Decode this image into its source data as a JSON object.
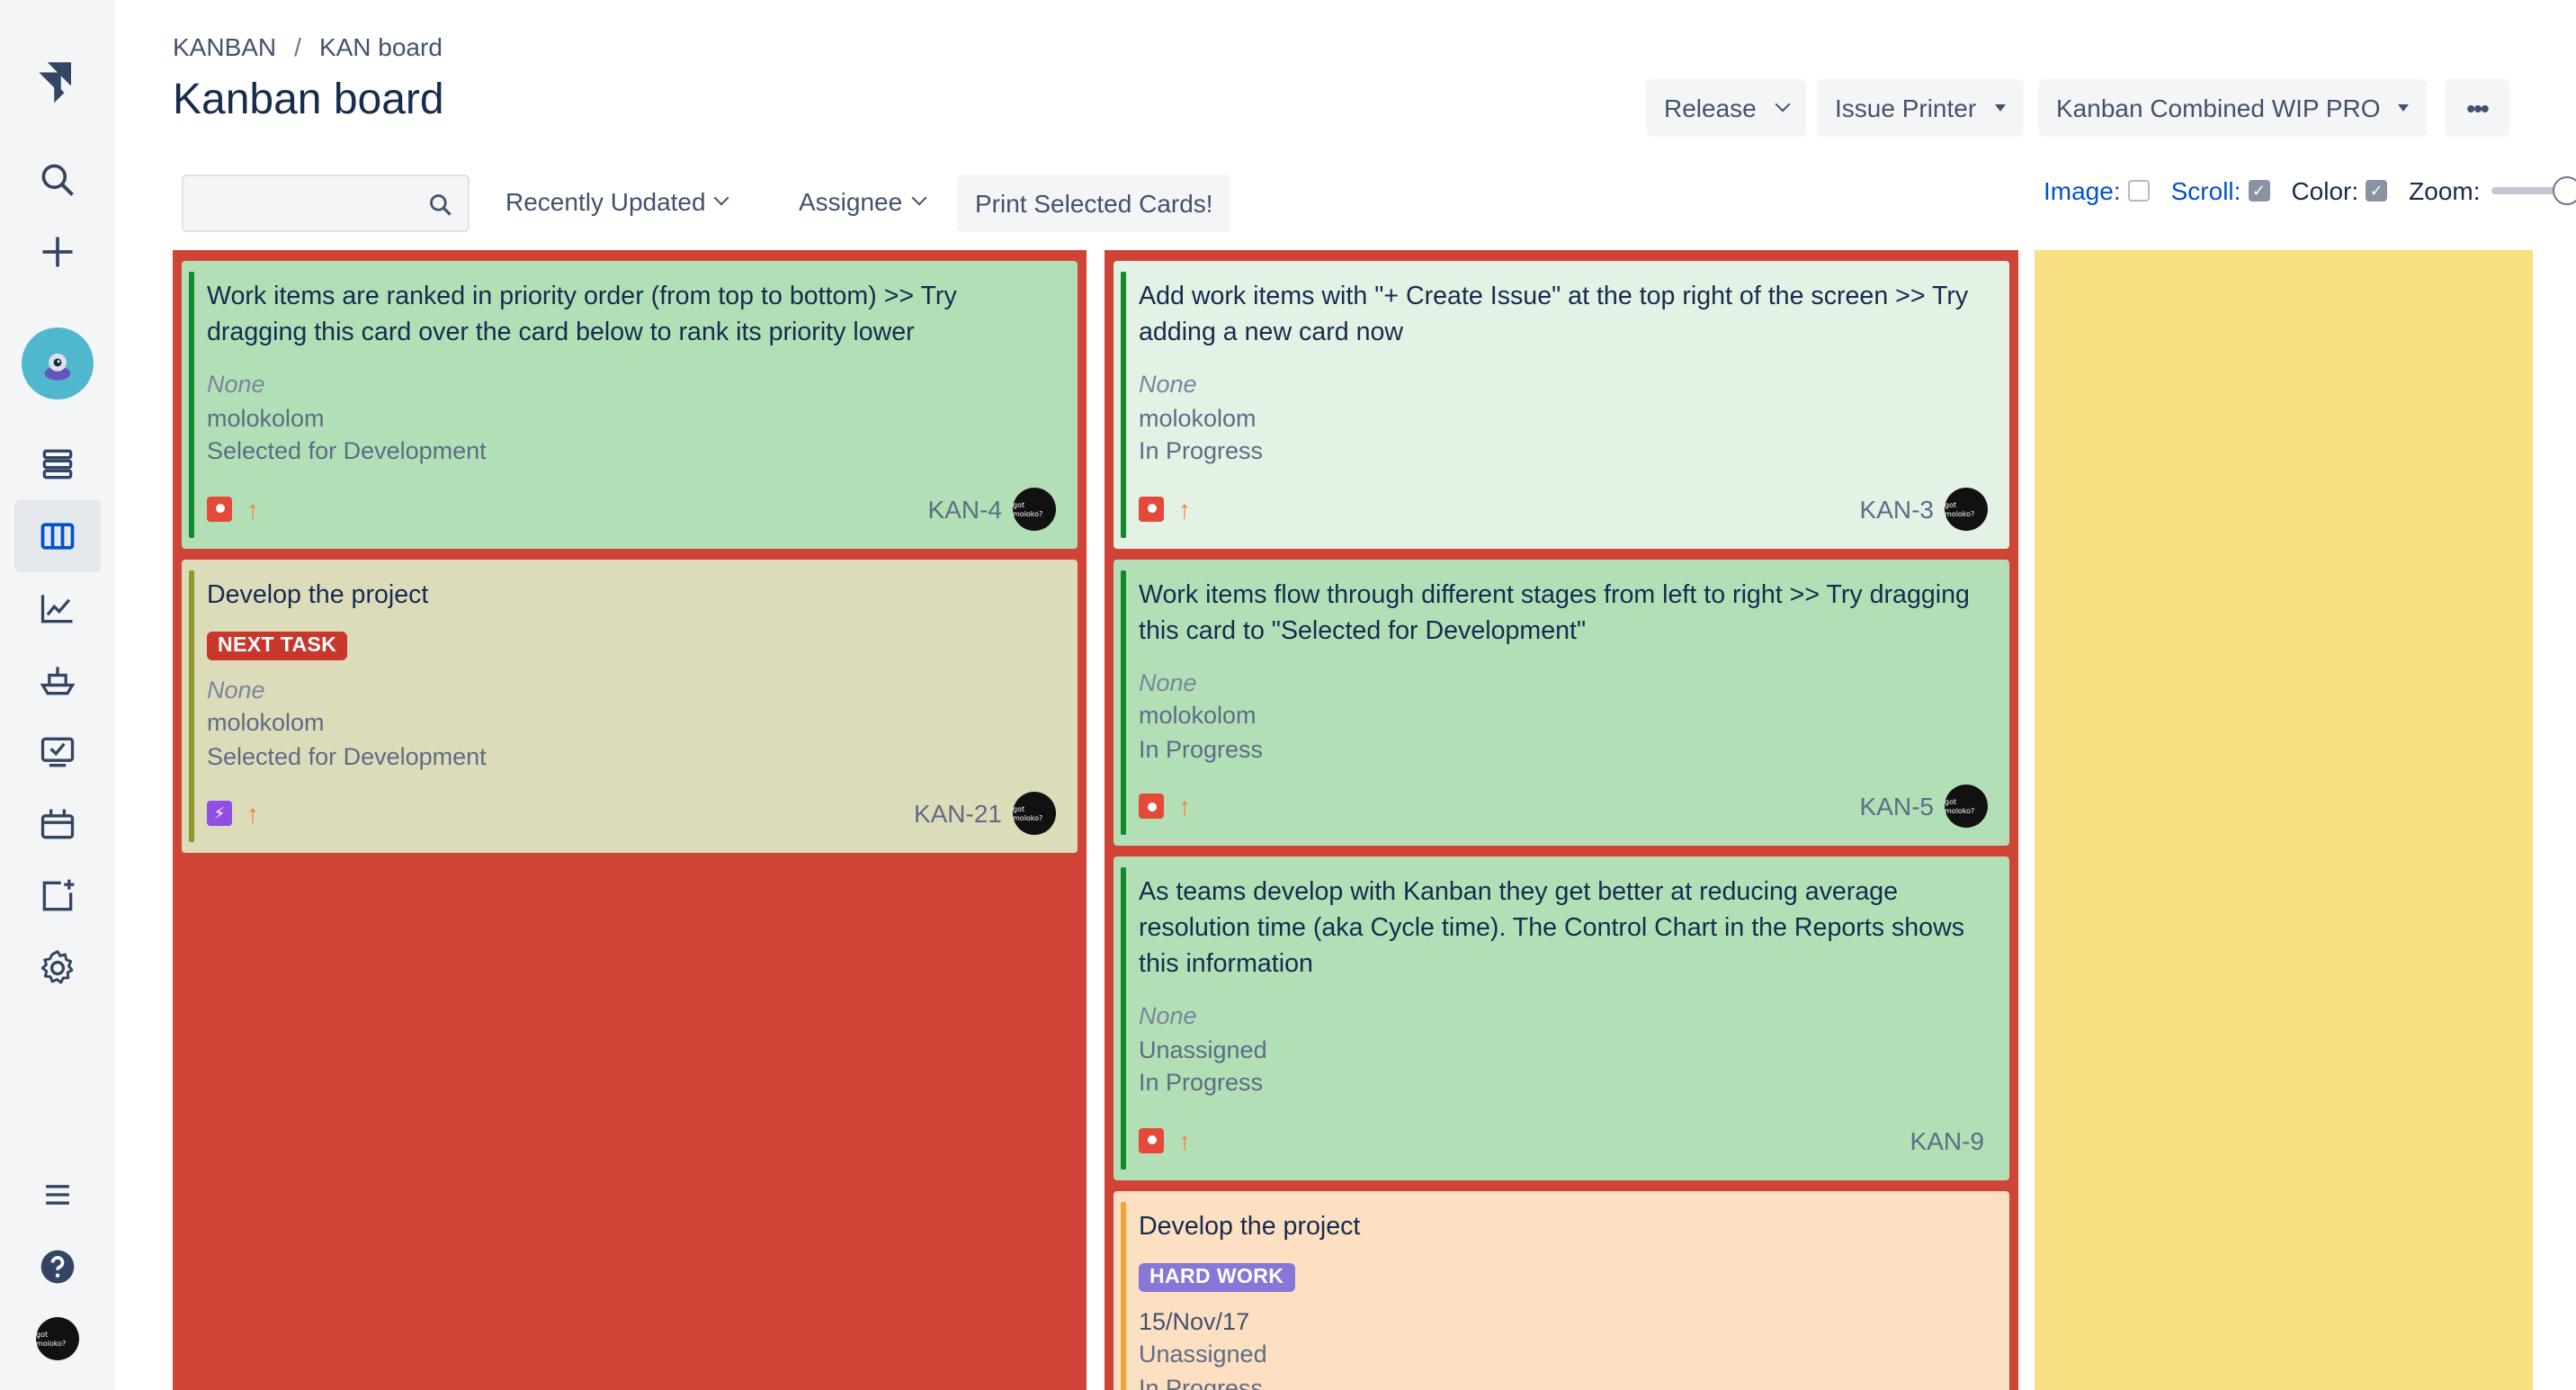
{
  "sidebar": {
    "logo_icon": "jira-logo-icon",
    "items": [
      {
        "name": "search-icon"
      },
      {
        "name": "create-icon"
      },
      {
        "name": "project-avatar"
      },
      {
        "name": "backlog-icon"
      },
      {
        "name": "board-icon",
        "active": true
      },
      {
        "name": "reports-icon"
      },
      {
        "name": "releases-icon"
      },
      {
        "name": "issues-icon"
      },
      {
        "name": "components-icon"
      },
      {
        "name": "add-item-icon"
      },
      {
        "name": "settings-icon"
      }
    ],
    "bottom": [
      {
        "name": "menu-icon"
      },
      {
        "name": "help-icon"
      },
      {
        "name": "user-avatar"
      }
    ],
    "avatar_text": "got moloko?"
  },
  "breadcrumb": {
    "project": "KANBAN",
    "sep": "/",
    "board": "KAN board"
  },
  "title": "Kanban board",
  "header_buttons": {
    "release": "Release",
    "issue_printer": "Issue Printer",
    "wip": "Kanban Combined WIP PRO",
    "more": "•••"
  },
  "filters": {
    "search_placeholder": "",
    "recently_updated": "Recently Updated",
    "assignee": "Assignee",
    "print": "Print Selected Cards!"
  },
  "options": {
    "image": "Image:",
    "image_checked": false,
    "scroll": "Scroll:",
    "scroll_checked": true,
    "color": "Color:",
    "color_checked": true,
    "zoom": "Zoom:"
  },
  "columns": [
    {
      "color": "#d04437",
      "cards": [
        {
          "summary": "Work items are ranked in priority order (from top to bottom) >> Try dragging this card over the card below to rank its priority lower",
          "due": "None",
          "assignee": "molokolom",
          "status": "Selected for Development",
          "key": "KAN-4",
          "type": "bug",
          "color": "green",
          "avatar": true
        },
        {
          "summary": "Develop the project",
          "label": "NEXT TASK",
          "label_color": "red",
          "due": "None",
          "assignee": "molokolom",
          "status": "Selected for Development",
          "key": "KAN-21",
          "type": "epic",
          "color": "khaki",
          "avatar": true
        }
      ]
    },
    {
      "color": "#d04437",
      "cards": [
        {
          "summary": "Add work items with \"+ Create Issue\" at the top right of the screen >> Try adding a new card now",
          "due": "None",
          "assignee": "molokolom",
          "status": "In Progress",
          "key": "KAN-3",
          "type": "bug",
          "color": "lightgreen",
          "avatar": true
        },
        {
          "summary": "Work items flow through different stages from left to right >> Try dragging this card to \"Selected for Development\"",
          "due": "None",
          "assignee": "molokolom",
          "status": "In Progress",
          "key": "KAN-5",
          "type": "bug",
          "color": "green",
          "avatar": true
        },
        {
          "summary": "As teams develop with Kanban they get better at reducing average resolution time (aka Cycle time). The Control Chart in the Reports shows this information",
          "due": "None",
          "assignee": "Unassigned",
          "status": "In Progress",
          "key": "KAN-9",
          "type": "bug",
          "color": "green",
          "avatar": false
        },
        {
          "summary": "Develop the project",
          "label": "HARD WORK",
          "label_color": "purple",
          "due": "15/Nov/17",
          "assignee": "Unassigned",
          "status": "In Progress",
          "key": "",
          "type": "epic",
          "color": "peach",
          "avatar": false
        }
      ]
    },
    {
      "color": "#f9e082",
      "cards": []
    }
  ],
  "priority_icon": "arrow-up-icon"
}
